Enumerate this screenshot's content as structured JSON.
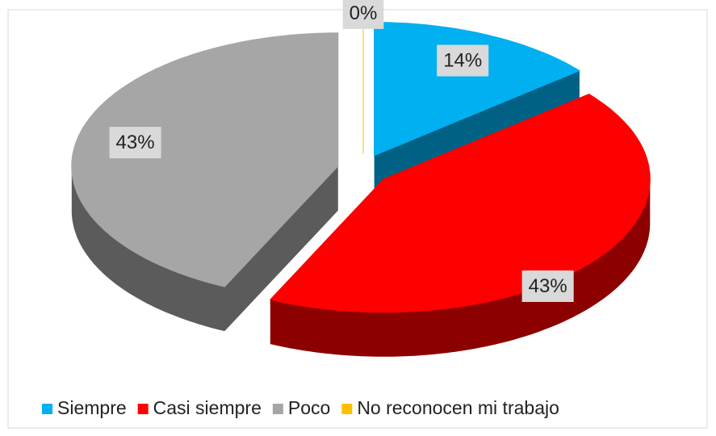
{
  "chart_data": {
    "type": "pie",
    "categories": [
      "Siempre",
      "Casi siempre",
      "Poco",
      "No reconocen mi trabajo"
    ],
    "values": [
      14,
      43,
      43,
      0
    ],
    "value_labels": [
      "14%",
      "43%",
      "43%",
      "0%"
    ],
    "colors": [
      "#00b0f0",
      "#ff0000",
      "#a6a6a6",
      "#ffc000"
    ],
    "legend": "bottom"
  }
}
